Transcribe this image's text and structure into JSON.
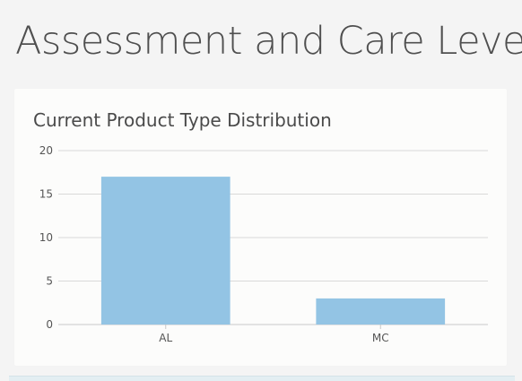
{
  "page": {
    "title": "Assessment and Care Level"
  },
  "card": {
    "title": "Current Product Type Distribution"
  },
  "colors": {
    "bar": "#93c4e4",
    "grid": "#d9d9d9",
    "axis": "#c8c8c8",
    "background": "#f4f4f4",
    "card": "#fcfcfb"
  },
  "chart_data": {
    "type": "bar",
    "title": "Current Product Type Distribution",
    "categories": [
      "AL",
      "MC"
    ],
    "values": [
      17,
      3
    ],
    "xlabel": "",
    "ylabel": "",
    "ylim": [
      0,
      20
    ],
    "yticks": [
      0,
      5,
      10,
      15,
      20
    ],
    "grid": true,
    "legend": "none"
  }
}
